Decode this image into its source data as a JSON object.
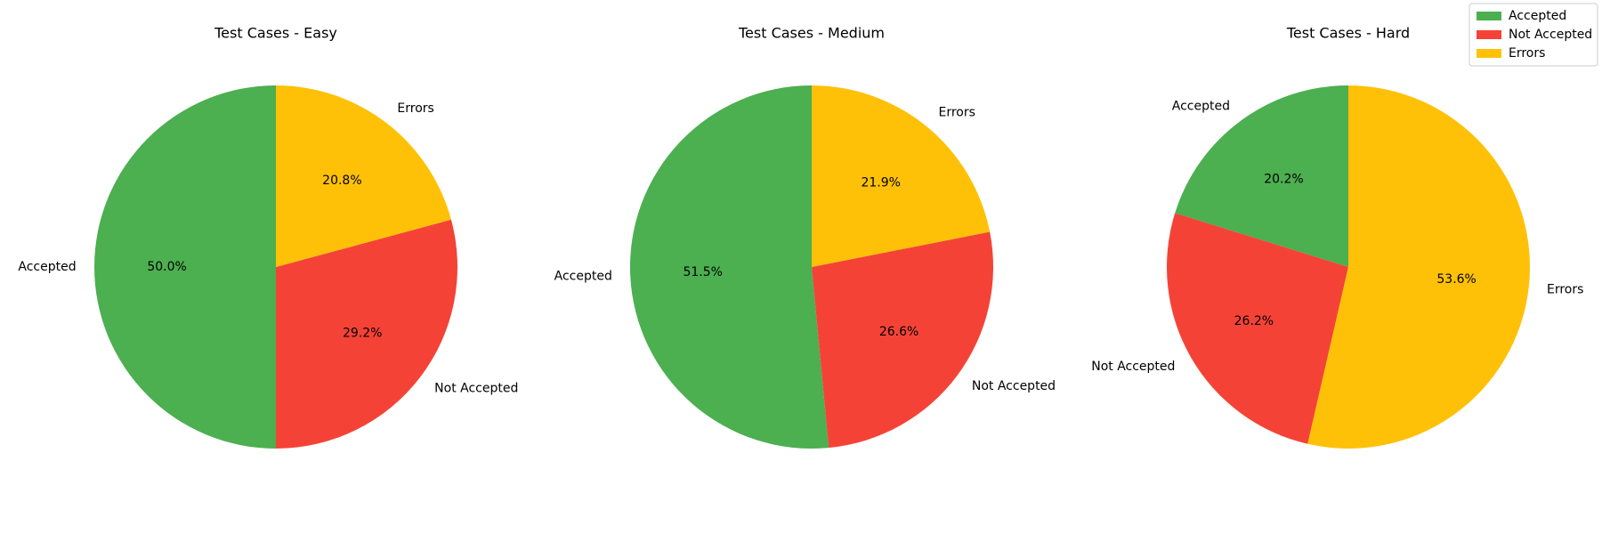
{
  "chart_data": [
    {
      "type": "pie",
      "title": "Test Cases - Easy",
      "labels": [
        "Accepted",
        "Not Accepted",
        "Errors"
      ],
      "percentages": [
        "50.0%",
        "29.2%",
        "20.8%"
      ],
      "values": [
        50.0,
        29.2,
        20.8
      ],
      "colors": [
        "#4caf50",
        "#f44336",
        "#ffc107"
      ]
    },
    {
      "type": "pie",
      "title": "Test Cases - Medium",
      "labels": [
        "Accepted",
        "Not Accepted",
        "Errors"
      ],
      "percentages": [
        "51.5%",
        "26.6%",
        "21.9%"
      ],
      "values": [
        51.5,
        26.6,
        21.9
      ],
      "colors": [
        "#4caf50",
        "#f44336",
        "#ffc107"
      ]
    },
    {
      "type": "pie",
      "title": "Test Cases - Hard",
      "labels": [
        "Accepted",
        "Not Accepted",
        "Errors"
      ],
      "percentages": [
        "20.2%",
        "26.2%",
        "53.6%"
      ],
      "values": [
        20.2,
        26.2,
        53.6
      ],
      "colors": [
        "#4caf50",
        "#f44336",
        "#ffc107"
      ]
    }
  ],
  "legend": {
    "placement": "top-right",
    "items": [
      {
        "label": "Accepted",
        "color": "#4caf50"
      },
      {
        "label": "Not Accepted",
        "color": "#f44336"
      },
      {
        "label": "Errors",
        "color": "#ffc107"
      }
    ]
  }
}
